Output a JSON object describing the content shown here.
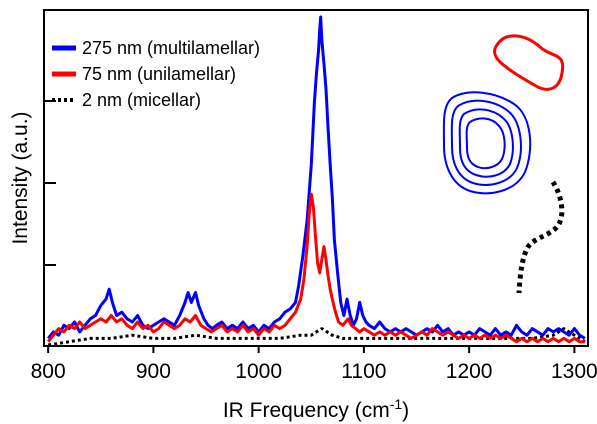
{
  "chart_data": {
    "type": "line",
    "xlabel_main": "IR Frequency (cm",
    "xlabel_sup": "-1",
    "xlabel_end": ")",
    "ylabel": "Intensity (a.u.)",
    "xlim": [
      797,
      1312
    ],
    "ylim": [
      0,
      1.0
    ],
    "xticks": [
      800,
      900,
      1000,
      1100,
      1200,
      1300
    ],
    "yticks": [
      0.25,
      0.5,
      0.75
    ],
    "legend_position": "top-left",
    "series": [
      {
        "name": "275 nm (multilamellar)",
        "color": "#0000ff",
        "dash": "solid",
        "points": [
          [
            800,
            0.02
          ],
          [
            805,
            0.04
          ],
          [
            810,
            0.03
          ],
          [
            815,
            0.06
          ],
          [
            820,
            0.05
          ],
          [
            825,
            0.07
          ],
          [
            830,
            0.04
          ],
          [
            835,
            0.06
          ],
          [
            840,
            0.08
          ],
          [
            845,
            0.09
          ],
          [
            850,
            0.12
          ],
          [
            855,
            0.14
          ],
          [
            858,
            0.17
          ],
          [
            861,
            0.13
          ],
          [
            865,
            0.09
          ],
          [
            870,
            0.1
          ],
          [
            875,
            0.08
          ],
          [
            880,
            0.07
          ],
          [
            885,
            0.09
          ],
          [
            890,
            0.06
          ],
          [
            895,
            0.05
          ],
          [
            900,
            0.06
          ],
          [
            905,
            0.07
          ],
          [
            910,
            0.08
          ],
          [
            915,
            0.07
          ],
          [
            920,
            0.06
          ],
          [
            925,
            0.09
          ],
          [
            930,
            0.13
          ],
          [
            933,
            0.16
          ],
          [
            936,
            0.13
          ],
          [
            940,
            0.16
          ],
          [
            943,
            0.12
          ],
          [
            948,
            0.08
          ],
          [
            952,
            0.06
          ],
          [
            956,
            0.05
          ],
          [
            960,
            0.06
          ],
          [
            965,
            0.07
          ],
          [
            970,
            0.05
          ],
          [
            975,
            0.06
          ],
          [
            980,
            0.05
          ],
          [
            985,
            0.07
          ],
          [
            990,
            0.05
          ],
          [
            995,
            0.06
          ],
          [
            1000,
            0.04
          ],
          [
            1005,
            0.06
          ],
          [
            1010,
            0.05
          ],
          [
            1015,
            0.07
          ],
          [
            1020,
            0.08
          ],
          [
            1025,
            0.1
          ],
          [
            1030,
            0.11
          ],
          [
            1035,
            0.13
          ],
          [
            1038,
            0.18
          ],
          [
            1042,
            0.27
          ],
          [
            1046,
            0.38
          ],
          [
            1050,
            0.55
          ],
          [
            1053,
            0.74
          ],
          [
            1055,
            0.83
          ],
          [
            1057,
            0.9
          ],
          [
            1058,
            0.96
          ],
          [
            1059,
            1.0
          ],
          [
            1060,
            0.93
          ],
          [
            1062,
            0.86
          ],
          [
            1064,
            0.78
          ],
          [
            1066,
            0.66
          ],
          [
            1068,
            0.55
          ],
          [
            1070,
            0.45
          ],
          [
            1072,
            0.32
          ],
          [
            1075,
            0.22
          ],
          [
            1078,
            0.13
          ],
          [
            1081,
            0.09
          ],
          [
            1084,
            0.14
          ],
          [
            1087,
            0.09
          ],
          [
            1090,
            0.06
          ],
          [
            1093,
            0.08
          ],
          [
            1096,
            0.13
          ],
          [
            1099,
            0.09
          ],
          [
            1102,
            0.07
          ],
          [
            1105,
            0.06
          ],
          [
            1110,
            0.05
          ],
          [
            1115,
            0.07
          ],
          [
            1120,
            0.05
          ],
          [
            1125,
            0.04
          ],
          [
            1130,
            0.05
          ],
          [
            1135,
            0.04
          ],
          [
            1140,
            0.05
          ],
          [
            1145,
            0.04
          ],
          [
            1150,
            0.03
          ],
          [
            1155,
            0.04
          ],
          [
            1160,
            0.05
          ],
          [
            1165,
            0.04
          ],
          [
            1170,
            0.06
          ],
          [
            1175,
            0.04
          ],
          [
            1180,
            0.05
          ],
          [
            1185,
            0.03
          ],
          [
            1190,
            0.04
          ],
          [
            1195,
            0.03
          ],
          [
            1200,
            0.04
          ],
          [
            1205,
            0.03
          ],
          [
            1210,
            0.05
          ],
          [
            1215,
            0.04
          ],
          [
            1220,
            0.03
          ],
          [
            1225,
            0.05
          ],
          [
            1230,
            0.03
          ],
          [
            1235,
            0.04
          ],
          [
            1240,
            0.03
          ],
          [
            1245,
            0.06
          ],
          [
            1250,
            0.04
          ],
          [
            1255,
            0.03
          ],
          [
            1260,
            0.05
          ],
          [
            1265,
            0.04
          ],
          [
            1270,
            0.03
          ],
          [
            1275,
            0.05
          ],
          [
            1280,
            0.04
          ],
          [
            1285,
            0.05
          ],
          [
            1290,
            0.04
          ],
          [
            1295,
            0.03
          ],
          [
            1300,
            0.05
          ],
          [
            1305,
            0.03
          ],
          [
            1310,
            0.02
          ]
        ]
      },
      {
        "name": "75 nm (unilamellar)",
        "color": "#ff0000",
        "dash": "solid",
        "points": [
          [
            800,
            0.01
          ],
          [
            805,
            0.03
          ],
          [
            810,
            0.05
          ],
          [
            815,
            0.04
          ],
          [
            820,
            0.06
          ],
          [
            825,
            0.05
          ],
          [
            830,
            0.07
          ],
          [
            835,
            0.05
          ],
          [
            840,
            0.06
          ],
          [
            845,
            0.07
          ],
          [
            850,
            0.08
          ],
          [
            855,
            0.07
          ],
          [
            860,
            0.09
          ],
          [
            865,
            0.07
          ],
          [
            870,
            0.08
          ],
          [
            875,
            0.06
          ],
          [
            880,
            0.05
          ],
          [
            885,
            0.07
          ],
          [
            890,
            0.05
          ],
          [
            895,
            0.06
          ],
          [
            900,
            0.04
          ],
          [
            905,
            0.05
          ],
          [
            910,
            0.07
          ],
          [
            915,
            0.06
          ],
          [
            920,
            0.05
          ],
          [
            925,
            0.06
          ],
          [
            930,
            0.08
          ],
          [
            935,
            0.07
          ],
          [
            940,
            0.09
          ],
          [
            945,
            0.06
          ],
          [
            950,
            0.05
          ],
          [
            955,
            0.04
          ],
          [
            960,
            0.05
          ],
          [
            965,
            0.06
          ],
          [
            970,
            0.04
          ],
          [
            975,
            0.05
          ],
          [
            980,
            0.04
          ],
          [
            985,
            0.06
          ],
          [
            990,
            0.04
          ],
          [
            995,
            0.05
          ],
          [
            1000,
            0.03
          ],
          [
            1005,
            0.05
          ],
          [
            1010,
            0.04
          ],
          [
            1015,
            0.06
          ],
          [
            1020,
            0.05
          ],
          [
            1025,
            0.06
          ],
          [
            1030,
            0.08
          ],
          [
            1035,
            0.1
          ],
          [
            1040,
            0.14
          ],
          [
            1043,
            0.2
          ],
          [
            1046,
            0.3
          ],
          [
            1048,
            0.4
          ],
          [
            1050,
            0.46
          ],
          [
            1052,
            0.42
          ],
          [
            1054,
            0.33
          ],
          [
            1056,
            0.25
          ],
          [
            1058,
            0.22
          ],
          [
            1060,
            0.26
          ],
          [
            1062,
            0.3
          ],
          [
            1064,
            0.26
          ],
          [
            1066,
            0.21
          ],
          [
            1068,
            0.17
          ],
          [
            1070,
            0.14
          ],
          [
            1073,
            0.1
          ],
          [
            1076,
            0.07
          ],
          [
            1080,
            0.06
          ],
          [
            1085,
            0.08
          ],
          [
            1088,
            0.06
          ],
          [
            1092,
            0.05
          ],
          [
            1096,
            0.04
          ],
          [
            1100,
            0.05
          ],
          [
            1105,
            0.04
          ],
          [
            1110,
            0.03
          ],
          [
            1115,
            0.04
          ],
          [
            1120,
            0.03
          ],
          [
            1125,
            0.04
          ],
          [
            1130,
            0.03
          ],
          [
            1135,
            0.04
          ],
          [
            1140,
            0.03
          ],
          [
            1145,
            0.02
          ],
          [
            1150,
            0.03
          ],
          [
            1155,
            0.04
          ],
          [
            1160,
            0.03
          ],
          [
            1165,
            0.05
          ],
          [
            1170,
            0.04
          ],
          [
            1175,
            0.03
          ],
          [
            1180,
            0.04
          ],
          [
            1185,
            0.03
          ],
          [
            1190,
            0.02
          ],
          [
            1195,
            0.03
          ],
          [
            1200,
            0.02
          ],
          [
            1205,
            0.03
          ],
          [
            1210,
            0.02
          ],
          [
            1215,
            0.03
          ],
          [
            1220,
            0.02
          ],
          [
            1225,
            0.03
          ],
          [
            1230,
            0.02
          ],
          [
            1235,
            0.03
          ],
          [
            1240,
            0.02
          ],
          [
            1245,
            0.01
          ],
          [
            1250,
            0.02
          ],
          [
            1255,
            0.01
          ],
          [
            1260,
            0.02
          ],
          [
            1265,
            0.01
          ],
          [
            1270,
            0.02
          ],
          [
            1275,
            0.01
          ],
          [
            1280,
            0.02
          ],
          [
            1285,
            0.01
          ],
          [
            1290,
            0.02
          ],
          [
            1295,
            0.01
          ],
          [
            1300,
            0.02
          ],
          [
            1305,
            0.01
          ],
          [
            1310,
            0.01
          ]
        ]
      },
      {
        "name": "2 nm (micellar)",
        "color": "#000000",
        "dash": "dotted",
        "points": [
          [
            800,
            0.0
          ],
          [
            820,
            0.01
          ],
          [
            840,
            0.02
          ],
          [
            860,
            0.02
          ],
          [
            880,
            0.03
          ],
          [
            900,
            0.02
          ],
          [
            920,
            0.02
          ],
          [
            940,
            0.03
          ],
          [
            960,
            0.02
          ],
          [
            980,
            0.02
          ],
          [
            1000,
            0.02
          ],
          [
            1020,
            0.02
          ],
          [
            1040,
            0.03
          ],
          [
            1050,
            0.03
          ],
          [
            1055,
            0.04
          ],
          [
            1060,
            0.05
          ],
          [
            1065,
            0.04
          ],
          [
            1070,
            0.03
          ],
          [
            1080,
            0.02
          ],
          [
            1100,
            0.02
          ],
          [
            1120,
            0.02
          ],
          [
            1140,
            0.02
          ],
          [
            1160,
            0.02
          ],
          [
            1180,
            0.02
          ],
          [
            1200,
            0.02
          ],
          [
            1220,
            0.02
          ],
          [
            1240,
            0.02
          ],
          [
            1260,
            0.02
          ],
          [
            1280,
            0.03
          ],
          [
            1290,
            0.05
          ],
          [
            1295,
            0.04
          ],
          [
            1300,
            0.03
          ],
          [
            1305,
            0.02
          ],
          [
            1310,
            0.01
          ]
        ]
      }
    ]
  },
  "insets": {
    "red_loop_color": "#ff0000",
    "blue_loop_color": "#0000ff",
    "black_line_color": "#000000"
  }
}
